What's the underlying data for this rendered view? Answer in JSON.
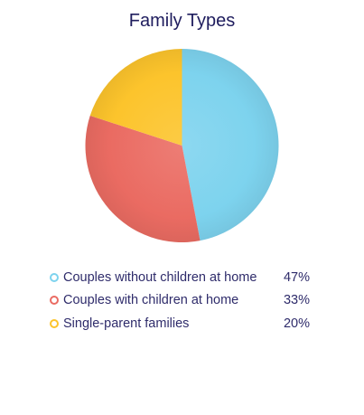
{
  "chart_data": {
    "type": "pie",
    "title": "Family Types",
    "slices": [
      {
        "label": "Couples without children at home",
        "value": 47,
        "display": "47%",
        "color": "#7dd3ee"
      },
      {
        "label": "Couples with children at home",
        "value": 33,
        "display": "33%",
        "color": "#ea6b62"
      },
      {
        "label": "Single-parent families",
        "value": 20,
        "display": "20%",
        "color": "#fcc42c"
      }
    ],
    "legend_position": "bottom"
  }
}
